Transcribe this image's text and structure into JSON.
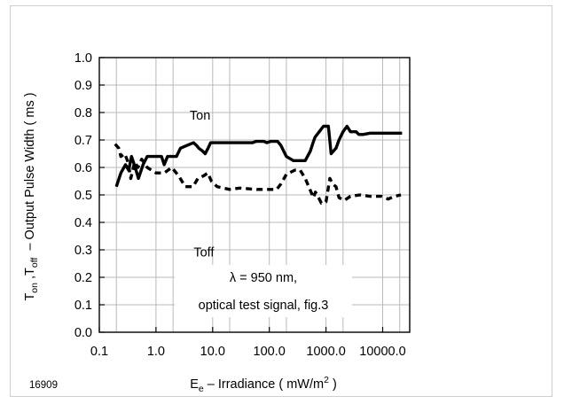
{
  "figure_id": "16909",
  "chart_data": {
    "type": "line",
    "x_scale": "log",
    "grid": true,
    "xlim": [
      0.1,
      30000
    ],
    "ylim": [
      0.0,
      1.0
    ],
    "x_ticks": [
      0.1,
      1.0,
      10.0,
      100.0,
      1000.0,
      10000.0
    ],
    "x_tick_labels": [
      "0.1",
      "1.0",
      "10.0",
      "100.0",
      "1000.0",
      "10000.0"
    ],
    "y_ticks": [
      0.0,
      0.1,
      0.2,
      0.3,
      0.4,
      0.5,
      0.6,
      0.7,
      0.8,
      0.9,
      1.0
    ],
    "y_tick_labels": [
      "0.0",
      "0.1",
      "0.2",
      "0.3",
      "0.4",
      "0.5",
      "0.6",
      "0.7",
      "0.8",
      "0.9",
      "1.0"
    ],
    "ylabel": {
      "t1": "T",
      "s1": "on",
      "sep": " ,T",
      "s2": "off",
      "rest": "  – Output Pulse Width ( ms )"
    },
    "xlabel": {
      "e": "E",
      "sub": "e",
      "rest": " – Irradiance ( mW/m",
      "sup": "2",
      "end": " )"
    },
    "annotation": [
      "λ = 950 nm,",
      "optical test signal, fig.3"
    ],
    "series": [
      {
        "name": "Ton",
        "style": "solid",
        "color": "#000000",
        "label_at": [
          6.0,
          0.775
        ],
        "points": [
          [
            0.2,
            0.53
          ],
          [
            0.24,
            0.58
          ],
          [
            0.29,
            0.61
          ],
          [
            0.33,
            0.59
          ],
          [
            0.37,
            0.64
          ],
          [
            0.43,
            0.6
          ],
          [
            0.49,
            0.56
          ],
          [
            0.59,
            0.61
          ],
          [
            0.7,
            0.64
          ],
          [
            0.85,
            0.64
          ],
          [
            1.05,
            0.64
          ],
          [
            1.25,
            0.64
          ],
          [
            1.4,
            0.61
          ],
          [
            1.6,
            0.64
          ],
          [
            2.3,
            0.64
          ],
          [
            2.7,
            0.67
          ],
          [
            3.5,
            0.68
          ],
          [
            4.6,
            0.69
          ],
          [
            5.2,
            0.68
          ],
          [
            5.7,
            0.67
          ],
          [
            6.6,
            0.66
          ],
          [
            7.4,
            0.65
          ],
          [
            8.3,
            0.67
          ],
          [
            9.2,
            0.69
          ],
          [
            20,
            0.69
          ],
          [
            50,
            0.69
          ],
          [
            58,
            0.695
          ],
          [
            80,
            0.695
          ],
          [
            90,
            0.69
          ],
          [
            105,
            0.695
          ],
          [
            140,
            0.695
          ],
          [
            160,
            0.68
          ],
          [
            200,
            0.64
          ],
          [
            265,
            0.625
          ],
          [
            360,
            0.625
          ],
          [
            430,
            0.625
          ],
          [
            530,
            0.66
          ],
          [
            590,
            0.69
          ],
          [
            640,
            0.71
          ],
          [
            760,
            0.73
          ],
          [
            900,
            0.75
          ],
          [
            1100,
            0.75
          ],
          [
            1230,
            0.65
          ],
          [
            1500,
            0.67
          ],
          [
            1700,
            0.7
          ],
          [
            2000,
            0.73
          ],
          [
            2350,
            0.75
          ],
          [
            2700,
            0.73
          ],
          [
            3400,
            0.73
          ],
          [
            3800,
            0.72
          ],
          [
            4500,
            0.72
          ],
          [
            6000,
            0.725
          ],
          [
            10000,
            0.725
          ],
          [
            15000,
            0.725
          ],
          [
            22000,
            0.725
          ]
        ]
      },
      {
        "name": "Toff",
        "style": "dashed",
        "color": "#000000",
        "label_at": [
          7.0,
          0.63
        ],
        "points": [
          [
            0.19,
            0.685
          ],
          [
            0.22,
            0.67
          ],
          [
            0.24,
            0.64
          ],
          [
            0.28,
            0.65
          ],
          [
            0.32,
            0.62
          ],
          [
            0.36,
            0.56
          ],
          [
            0.42,
            0.62
          ],
          [
            0.48,
            0.6
          ],
          [
            0.56,
            0.63
          ],
          [
            0.7,
            0.6
          ],
          [
            1.0,
            0.58
          ],
          [
            1.4,
            0.58
          ],
          [
            1.9,
            0.6
          ],
          [
            2.5,
            0.57
          ],
          [
            3.3,
            0.53
          ],
          [
            4.5,
            0.53
          ],
          [
            5.5,
            0.56
          ],
          [
            7.0,
            0.57
          ],
          [
            8.2,
            0.58
          ],
          [
            9.5,
            0.55
          ],
          [
            12,
            0.53
          ],
          [
            20,
            0.52
          ],
          [
            30,
            0.525
          ],
          [
            60,
            0.52
          ],
          [
            100,
            0.52
          ],
          [
            135,
            0.52
          ],
          [
            160,
            0.54
          ],
          [
            200,
            0.575
          ],
          [
            280,
            0.59
          ],
          [
            350,
            0.59
          ],
          [
            430,
            0.56
          ],
          [
            520,
            0.52
          ],
          [
            600,
            0.49
          ],
          [
            650,
            0.51
          ],
          [
            700,
            0.5
          ],
          [
            830,
            0.47
          ],
          [
            1000,
            0.475
          ],
          [
            1170,
            0.56
          ],
          [
            1300,
            0.54
          ],
          [
            1500,
            0.53
          ],
          [
            1700,
            0.49
          ],
          [
            2100,
            0.48
          ],
          [
            2700,
            0.495
          ],
          [
            4000,
            0.5
          ],
          [
            6000,
            0.495
          ],
          [
            9500,
            0.495
          ],
          [
            12500,
            0.485
          ],
          [
            16000,
            0.495
          ],
          [
            21000,
            0.5
          ]
        ]
      }
    ]
  }
}
